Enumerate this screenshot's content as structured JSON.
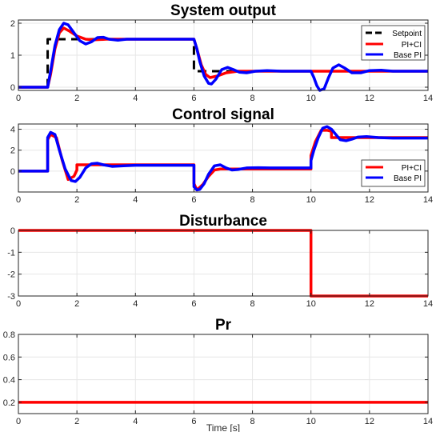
{
  "chart_data": [
    {
      "type": "line",
      "title": "System output",
      "xlabel": "",
      "ylabel": "",
      "xlim": [
        0,
        14
      ],
      "ylim": [
        -0.1,
        2.1
      ],
      "xticks": [
        0,
        2,
        4,
        6,
        8,
        10,
        12,
        14
      ],
      "yticks": [
        0,
        1,
        2
      ],
      "grid": true,
      "legend": {
        "placement": "top-right",
        "entries": [
          "Setpoint",
          "PI+CI",
          "Base PI"
        ]
      },
      "series": [
        {
          "name": "Setpoint",
          "color": "#000000",
          "dash": true,
          "width": 3,
          "x": [
            0,
            1,
            1,
            6,
            6,
            14
          ],
          "y": [
            0,
            0,
            1.5,
            1.5,
            0.5,
            0.5
          ]
        },
        {
          "name": "PI+CI",
          "color": "#ff0000",
          "width": 3.5,
          "x": [
            0,
            1.0,
            1.1,
            1.25,
            1.4,
            1.55,
            1.75,
            2.0,
            2.3,
            2.6,
            3.0,
            6.0,
            6.1,
            6.25,
            6.4,
            6.55,
            6.8,
            7.1,
            7.5,
            8.0,
            14.0
          ],
          "y": [
            0,
            0,
            0.4,
            1.2,
            1.7,
            1.85,
            1.75,
            1.6,
            1.5,
            1.48,
            1.5,
            1.5,
            1.2,
            0.7,
            0.4,
            0.3,
            0.35,
            0.45,
            0.5,
            0.5,
            0.5
          ]
        },
        {
          "name": "Base PI",
          "color": "#0000ff",
          "width": 3.5,
          "x": [
            0,
            1.0,
            1.1,
            1.25,
            1.4,
            1.55,
            1.7,
            1.9,
            2.1,
            2.3,
            2.5,
            2.7,
            2.9,
            3.1,
            3.4,
            3.7,
            4.0,
            6.0,
            6.1,
            6.2,
            6.35,
            6.5,
            6.6,
            6.75,
            6.95,
            7.15,
            7.35,
            7.55,
            7.8,
            8.1,
            8.5,
            9.0,
            10.0,
            10.1,
            10.2,
            10.3,
            10.45,
            10.6,
            10.75,
            10.95,
            11.15,
            11.4,
            11.7,
            12.0,
            12.4,
            12.8,
            14.0
          ],
          "y": [
            0,
            0,
            0.5,
            1.3,
            1.8,
            2.0,
            1.95,
            1.7,
            1.45,
            1.35,
            1.42,
            1.55,
            1.56,
            1.5,
            1.47,
            1.5,
            1.5,
            1.5,
            1.2,
            0.8,
            0.35,
            0.12,
            0.1,
            0.25,
            0.55,
            0.62,
            0.55,
            0.47,
            0.45,
            0.5,
            0.52,
            0.5,
            0.5,
            0.3,
            0.05,
            -0.1,
            -0.05,
            0.3,
            0.6,
            0.7,
            0.6,
            0.45,
            0.45,
            0.52,
            0.53,
            0.5,
            0.5
          ]
        }
      ]
    },
    {
      "type": "line",
      "title": "Control signal",
      "xlabel": "",
      "ylabel": "",
      "xlim": [
        0,
        14
      ],
      "ylim": [
        -2,
        4.5
      ],
      "xticks": [
        0,
        2,
        4,
        6,
        8,
        10,
        12,
        14
      ],
      "yticks": [
        0,
        2,
        4
      ],
      "grid": true,
      "legend": {
        "placement": "bottom-right",
        "entries": [
          "PI+CI",
          "Base PI"
        ]
      },
      "series": [
        {
          "name": "PI+CI",
          "color": "#ff0000",
          "width": 3.5,
          "x": [
            0,
            1.0,
            1.0,
            1.1,
            1.3,
            1.5,
            1.7,
            1.9,
            2.0,
            2.0,
            3.0,
            6.0,
            6.0,
            6.1,
            6.3,
            6.5,
            6.7,
            6.9,
            7.0,
            7.0,
            8.0,
            10.0,
            10.0,
            10.15,
            10.35,
            10.55,
            10.7,
            10.7,
            14.0
          ],
          "y": [
            0,
            0,
            3.0,
            3.5,
            3.2,
            1.0,
            -0.8,
            -0.5,
            0.1,
            0.6,
            0.6,
            0.6,
            -1.2,
            -1.8,
            -1.3,
            -0.5,
            0.1,
            0.2,
            0.2,
            0.2,
            0.2,
            0.2,
            1.5,
            2.8,
            3.9,
            3.9,
            3.8,
            3.2,
            3.2
          ]
        },
        {
          "name": "Base PI",
          "color": "#0000ff",
          "width": 3.5,
          "x": [
            0,
            1.0,
            1.0,
            1.1,
            1.25,
            1.4,
            1.6,
            1.8,
            1.95,
            2.1,
            2.3,
            2.5,
            2.7,
            2.9,
            3.2,
            3.6,
            4.0,
            6.0,
            6.0,
            6.1,
            6.2,
            6.35,
            6.5,
            6.7,
            6.9,
            7.1,
            7.3,
            7.5,
            7.8,
            8.2,
            8.6,
            10.0,
            10.0,
            10.1,
            10.25,
            10.4,
            10.55,
            10.7,
            10.85,
            11.0,
            11.2,
            11.4,
            11.6,
            11.9,
            12.3,
            12.8,
            14.0
          ],
          "y": [
            0,
            0,
            3.2,
            3.7,
            3.5,
            2.0,
            0.2,
            -0.9,
            -1.0,
            -0.6,
            0.3,
            0.7,
            0.75,
            0.6,
            0.45,
            0.5,
            0.55,
            0.55,
            -1.5,
            -1.8,
            -1.75,
            -1.2,
            -0.3,
            0.5,
            0.6,
            0.3,
            0.1,
            0.15,
            0.3,
            0.32,
            0.3,
            0.3,
            1.0,
            2.0,
            3.2,
            4.1,
            4.25,
            4.0,
            3.5,
            3.0,
            2.9,
            3.05,
            3.25,
            3.3,
            3.2,
            3.15,
            3.15
          ]
        }
      ]
    },
    {
      "type": "line",
      "title": "Disturbance",
      "xlabel": "",
      "ylabel": "",
      "xlim": [
        0,
        14
      ],
      "ylim": [
        -3,
        0
      ],
      "xticks": [
        0,
        2,
        4,
        6,
        8,
        10,
        12,
        14
      ],
      "yticks": [
        0,
        -1,
        -2,
        -3
      ],
      "grid": true,
      "series": [
        {
          "color": "#ff0000",
          "width": 3.5,
          "x": [
            0,
            10,
            10,
            14
          ],
          "y": [
            0,
            0,
            -3,
            -3
          ]
        }
      ]
    },
    {
      "type": "line",
      "title": "Pr",
      "xlabel": "Time [s]",
      "ylabel": "",
      "xlim": [
        0,
        14
      ],
      "ylim": [
        0.1,
        0.8
      ],
      "xticks": [
        0,
        2,
        4,
        6,
        8,
        10,
        12,
        14
      ],
      "yticks": [
        0.2,
        0.4,
        0.6,
        0.8
      ],
      "grid": true,
      "series": [
        {
          "color": "#ff0000",
          "width": 3.5,
          "x": [
            0,
            14
          ],
          "y": [
            0.2,
            0.2
          ]
        }
      ]
    }
  ]
}
